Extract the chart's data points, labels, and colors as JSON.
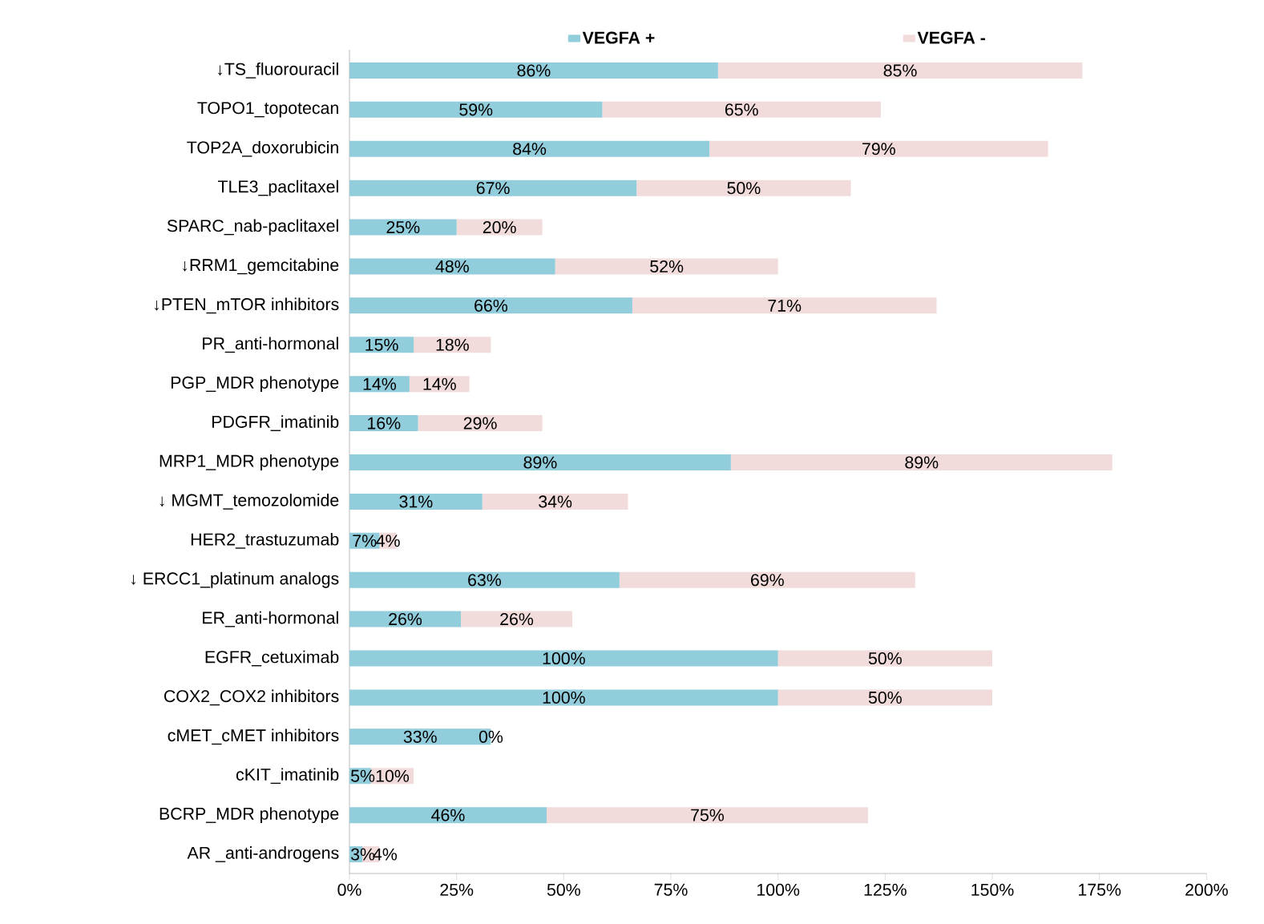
{
  "chart_data": {
    "type": "bar",
    "orientation": "horizontal",
    "stacked": true,
    "legend": "top",
    "categories": [
      "↓TS_fluorouracil",
      "TOPO1_topotecan",
      "TOP2A_doxorubicin",
      "TLE3_paclitaxel",
      "SPARC_nab-paclitaxel",
      "↓RRM1_gemcitabine",
      "↓PTEN_mTOR inhibitors",
      "PR_anti-hormonal",
      "PGP_MDR phenotype",
      "PDGFR_imatinib",
      "MRP1_MDR phenotype",
      "↓ MGMT_temozolomide",
      "HER2_trastuzumab",
      "↓ ERCC1_platinum analogs",
      "ER_anti-hormonal",
      "EGFR_cetuximab",
      "COX2_COX2 inhibitors",
      "cMET_cMET inhibitors",
      "cKIT_imatinib",
      "BCRP_MDR phenotype",
      "AR _anti-androgens"
    ],
    "series": [
      {
        "name": "VEGFA +",
        "color": "#92cddc",
        "values": [
          86,
          59,
          84,
          67,
          25,
          48,
          66,
          15,
          14,
          16,
          89,
          31,
          7,
          63,
          26,
          100,
          100,
          33,
          5,
          46,
          3
        ],
        "value_labels": [
          "86%",
          "59%",
          "84%",
          "67%",
          "25%",
          "48%",
          "66%",
          "15%",
          "14%",
          "16%",
          "89%",
          "31%",
          "7%",
          "63%",
          "26%",
          "100%",
          "100%",
          "33%",
          "5%",
          "46%",
          "3%"
        ]
      },
      {
        "name": "VEGFA -",
        "color": "#f2dcdb",
        "values": [
          85,
          65,
          79,
          50,
          20,
          52,
          71,
          18,
          14,
          29,
          89,
          34,
          4,
          69,
          26,
          50,
          50,
          0,
          10,
          75,
          4
        ],
        "value_labels": [
          "85%",
          "65%",
          "79%",
          "50%",
          "20%",
          "52%",
          "71%",
          "18%",
          "14%",
          "29%",
          "89%",
          "34%",
          "4%",
          "69%",
          "26%",
          "50%",
          "50%",
          "0%",
          "10%",
          "75%",
          "4%"
        ]
      }
    ],
    "xlim": [
      0,
      200
    ],
    "xticks": [
      {
        "value": 0,
        "label": "0%"
      },
      {
        "value": 25,
        "label": "25%"
      },
      {
        "value": 50,
        "label": "50%"
      },
      {
        "value": 75,
        "label": "75%"
      },
      {
        "value": 100,
        "label": "100%"
      },
      {
        "value": 125,
        "label": "125%"
      },
      {
        "value": 150,
        "label": "150%"
      },
      {
        "value": 175,
        "label": "175%"
      },
      {
        "value": 200,
        "label": "200%"
      }
    ]
  }
}
